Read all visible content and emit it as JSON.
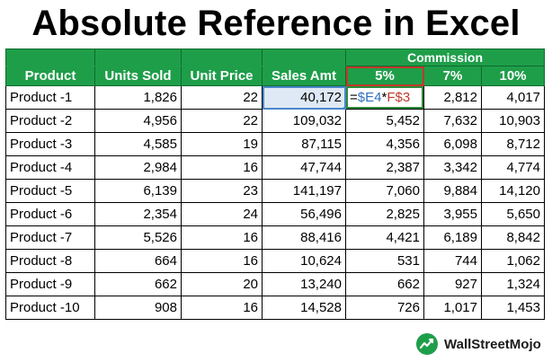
{
  "title": "Absolute Reference in Excel",
  "group_header": "Commission",
  "headers": [
    "Product",
    "Units Sold",
    "Unit Price",
    "Sales Amt",
    "5%",
    "7%",
    "10%"
  ],
  "rows": [
    [
      "Product -1",
      "1,826",
      "22",
      "40,172",
      "",
      "2,812",
      "4,017"
    ],
    [
      "Product -2",
      "4,956",
      "22",
      "109,032",
      "5,452",
      "7,632",
      "10,903"
    ],
    [
      "Product -3",
      "4,585",
      "19",
      "87,115",
      "4,356",
      "6,098",
      "8,712"
    ],
    [
      "Product -4",
      "2,984",
      "16",
      "47,744",
      "2,387",
      "3,342",
      "4,774"
    ],
    [
      "Product -5",
      "6,139",
      "23",
      "141,197",
      "7,060",
      "9,884",
      "14,120"
    ],
    [
      "Product -6",
      "2,354",
      "24",
      "56,496",
      "2,825",
      "3,955",
      "5,650"
    ],
    [
      "Product -7",
      "5,526",
      "16",
      "88,416",
      "4,421",
      "6,189",
      "8,842"
    ],
    [
      "Product -8",
      "664",
      "16",
      "10,624",
      "531",
      "744",
      "1,062"
    ],
    [
      "Product -9",
      "662",
      "20",
      "13,240",
      "662",
      "927",
      "1,324"
    ],
    [
      "Product -10",
      "908",
      "16",
      "14,528",
      "726",
      "1,017",
      "1,453"
    ]
  ],
  "formula": {
    "eq": "=",
    "ref1": "$E4",
    "op": "*",
    "ref2": "F$3"
  },
  "brand": {
    "name": "WallStreetMojo",
    "icon": "wallstreetmojo-logo-icon"
  },
  "colors": {
    "header_green": "#1f9e4a",
    "ref_blue": "#2e6fc0",
    "ref_red": "#c0392b"
  }
}
